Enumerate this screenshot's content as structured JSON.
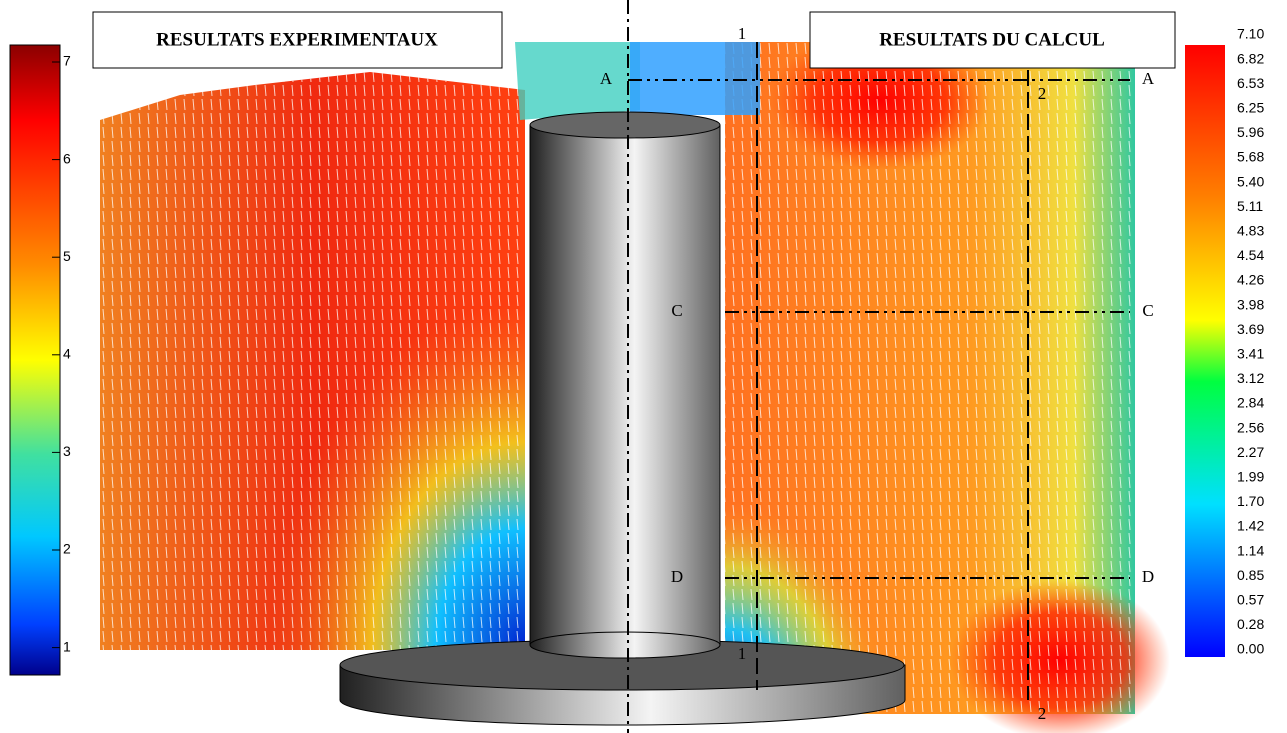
{
  "titles": {
    "experimental": "RESULTATS EXPERIMENTAUX",
    "calculated": "RESULTATS DU CALCUL"
  },
  "left_colorbar": {
    "ticks": [
      "7",
      "6",
      "5",
      "4",
      "3",
      "2",
      "1"
    ]
  },
  "right_colorbar": {
    "labels": [
      "7.10",
      "6.82",
      "6.53",
      "6.25",
      "5.96",
      "5.68",
      "5.40",
      "5.11",
      "4.83",
      "4.54",
      "4.26",
      "3.98",
      "3.69",
      "3.41",
      "3.12",
      "2.84",
      "2.56",
      "2.27",
      "1.99",
      "1.70",
      "1.42",
      "1.14",
      "0.85",
      "0.57",
      "0.28",
      "0.00"
    ]
  },
  "section_labels": {
    "a_left": "A",
    "a_right": "A",
    "c_left": "C",
    "c_right": "C",
    "d_left": "D",
    "d_right": "D",
    "line1_top": "1",
    "line1_bottom": "1",
    "line2_top": "2",
    "line2_bottom": "2",
    "base": "1"
  }
}
